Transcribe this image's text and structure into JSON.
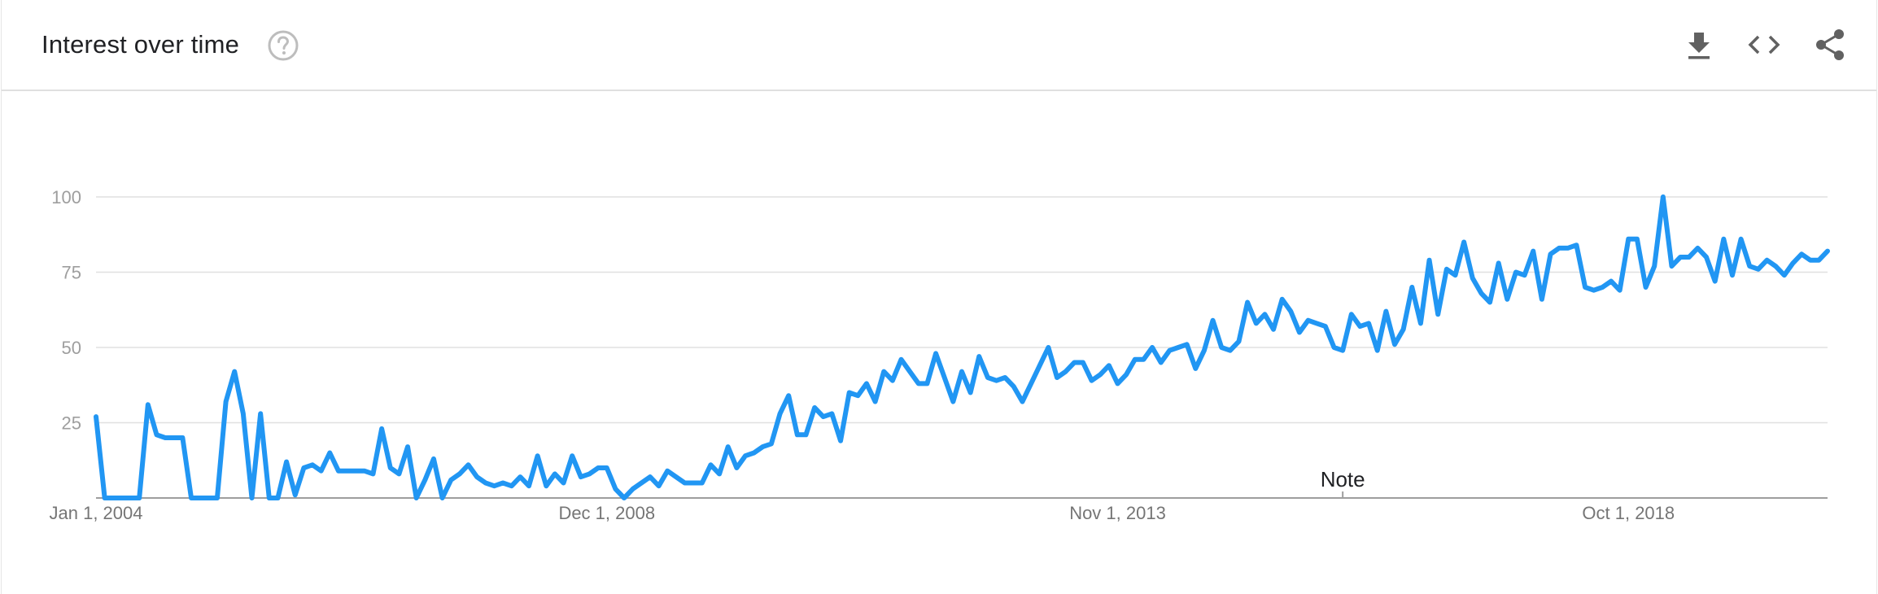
{
  "header": {
    "title": "Interest over time",
    "help_icon": "help-circle-icon",
    "toolbar": [
      {
        "name": "download-button",
        "icon": "download-icon"
      },
      {
        "name": "embed-button",
        "icon": "code-icon"
      },
      {
        "name": "share-button",
        "icon": "share-icon"
      }
    ]
  },
  "colors": {
    "line": "#2196f3",
    "grid": "#e0e0e0",
    "axis": "#9e9e9e",
    "icon": "#616161"
  },
  "chart_data": {
    "type": "line",
    "title": "",
    "xlabel": "",
    "ylabel": "",
    "ylim": [
      0,
      100
    ],
    "yticks": [
      "25",
      "50",
      "75",
      "100"
    ],
    "xticks": [
      "Jan 1, 2004",
      "Dec 1, 2008",
      "Nov 1, 2013",
      "Oct 1, 2018"
    ],
    "xtick_positions": [
      0,
      59,
      118,
      177
    ],
    "grid": true,
    "annotation": {
      "label": "Note",
      "index": 144
    },
    "series": [
      {
        "values": [
          27,
          0,
          0,
          0,
          0,
          0,
          31,
          21,
          20,
          20,
          20,
          0,
          0,
          0,
          0,
          32,
          42,
          28,
          0,
          28,
          0,
          0,
          12,
          1,
          10,
          11,
          9,
          15,
          9,
          9,
          9,
          9,
          8,
          23,
          10,
          8,
          17,
          0,
          6,
          13,
          0,
          6,
          8,
          11,
          7,
          5,
          4,
          5,
          4,
          7,
          4,
          14,
          4,
          8,
          5,
          14,
          7,
          8,
          10,
          10,
          3,
          0,
          3,
          5,
          7,
          4,
          9,
          7,
          5,
          5,
          5,
          11,
          8,
          17,
          10,
          14,
          15,
          17,
          18,
          28,
          34,
          21,
          21,
          30,
          27,
          28,
          19,
          35,
          34,
          38,
          32,
          42,
          39,
          46,
          42,
          38,
          38,
          48,
          40,
          32,
          42,
          35,
          47,
          40,
          39,
          40,
          37,
          32,
          38,
          44,
          50,
          40,
          42,
          45,
          45,
          39,
          41,
          44,
          38,
          41,
          46,
          46,
          50,
          45,
          49,
          50,
          51,
          43,
          49,
          59,
          50,
          49,
          52,
          65,
          58,
          61,
          56,
          66,
          62,
          55,
          59,
          58,
          57,
          50,
          49,
          61,
          57,
          58,
          49,
          62,
          51,
          56,
          70,
          58,
          79,
          61,
          76,
          74,
          85,
          73,
          68,
          65,
          78,
          66,
          75,
          74,
          82,
          66,
          81,
          83,
          83,
          84,
          70,
          69,
          70,
          72,
          69,
          86,
          86,
          70,
          77,
          100,
          77,
          80,
          80,
          83,
          80,
          72,
          86,
          74,
          86,
          77,
          76,
          79,
          77,
          74,
          78,
          81,
          79,
          79,
          82
        ]
      }
    ]
  }
}
